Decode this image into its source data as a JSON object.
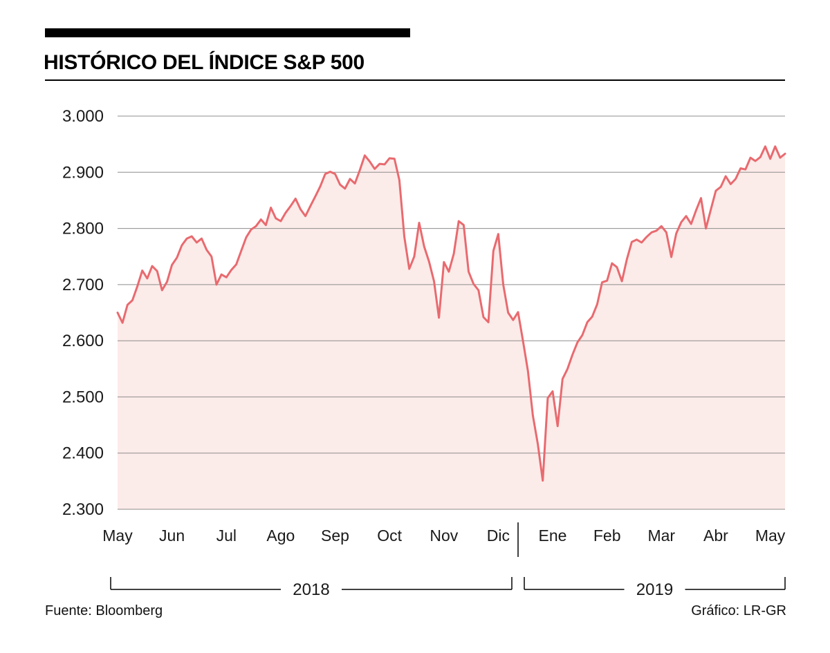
{
  "header": {
    "title": "HISTÓRICO DEL ÍNDICE S&P 500"
  },
  "footer": {
    "source": "Fuente: Bloomberg",
    "credit": "Gráfico: LR-GR"
  },
  "colors": {
    "line": "#e86a6f",
    "fill": "#fbebe9",
    "grid": "#8c8c8c",
    "axis_text": "#1a1a1a",
    "black": "#000000"
  },
  "chart_data": {
    "type": "area",
    "name": "S&P 500",
    "title": "HISTÓRICO DEL ÍNDICE S&P 500",
    "xlabel": "",
    "ylabel": "",
    "ylim": [
      2300,
      3000
    ],
    "yticks": [
      3000,
      2900,
      2800,
      2700,
      2600,
      2500,
      2400,
      2300
    ],
    "ytick_labels": [
      "3.000",
      "2.900",
      "2.800",
      "2.700",
      "2.600",
      "2.500",
      "2.400",
      "2.300"
    ],
    "month_labels": [
      "May",
      "Jun",
      "Jul",
      "Ago",
      "Sep",
      "Oct",
      "Nov",
      "Dic",
      "Ene",
      "Feb",
      "Mar",
      "Abr",
      "May"
    ],
    "year_groups": [
      {
        "label": "2018",
        "from_month": 0,
        "to_month": 7
      },
      {
        "label": "2019",
        "from_month": 8,
        "to_month": 12
      }
    ],
    "points_per_month": 11,
    "grid": true,
    "legend": "none",
    "values": [
      2650,
      2632,
      2664,
      2672,
      2697,
      2725,
      2711,
      2733,
      2724,
      2690,
      2705,
      2735,
      2748,
      2770,
      2782,
      2786,
      2775,
      2782,
      2762,
      2750,
      2700,
      2718,
      2713,
      2726,
      2736,
      2760,
      2784,
      2798,
      2804,
      2816,
      2806,
      2837,
      2818,
      2813,
      2828,
      2840,
      2853,
      2834,
      2822,
      2840,
      2857,
      2875,
      2897,
      2901,
      2897,
      2878,
      2871,
      2888,
      2880,
      2904,
      2930,
      2919,
      2906,
      2915,
      2914,
      2925,
      2924,
      2886,
      2785,
      2728,
      2750,
      2810,
      2768,
      2741,
      2706,
      2641,
      2740,
      2723,
      2755,
      2813,
      2806,
      2723,
      2701,
      2690,
      2642,
      2633,
      2760,
      2790,
      2700,
      2650,
      2637,
      2651,
      2600,
      2546,
      2467,
      2416,
      2351,
      2498,
      2510,
      2448,
      2532,
      2550,
      2575,
      2597,
      2610,
      2633,
      2643,
      2665,
      2704,
      2707,
      2738,
      2731,
      2706,
      2745,
      2776,
      2780,
      2775,
      2785,
      2793,
      2796,
      2804,
      2793,
      2749,
      2791,
      2811,
      2822,
      2808,
      2832,
      2854,
      2800,
      2834,
      2867,
      2874,
      2893,
      2879,
      2888,
      2907,
      2905,
      2926,
      2920,
      2927,
      2946,
      2924,
      2946,
      2926,
      2933
    ]
  }
}
